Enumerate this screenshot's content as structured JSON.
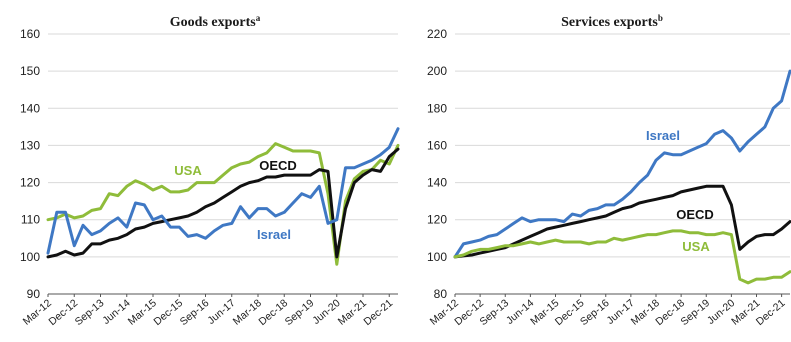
{
  "chart_data": [
    {
      "type": "line",
      "title": "Goods exports",
      "title_superscript": "a",
      "ylim": [
        90,
        160
      ],
      "yticks": [
        "160",
        "150",
        "140",
        "130",
        "120",
        "110",
        "100",
        "90"
      ],
      "xticks": [
        "Mar-12",
        "Dec-12",
        "Sep-13",
        "Jun-14",
        "Mar-15",
        "Dec-15",
        "Sep-16",
        "Jun-17",
        "Mar-18",
        "Dec-18",
        "Sep-19",
        "Jun-20",
        "Mar-21",
        "Dec-21"
      ],
      "grid": "horizontal",
      "x_dates": [
        "2012-03",
        "2012-06",
        "2012-09",
        "2012-12",
        "2013-03",
        "2013-06",
        "2013-09",
        "2013-12",
        "2014-03",
        "2014-06",
        "2014-09",
        "2014-12",
        "2015-03",
        "2015-06",
        "2015-09",
        "2015-12",
        "2016-03",
        "2016-06",
        "2016-09",
        "2016-12",
        "2017-03",
        "2017-06",
        "2017-09",
        "2017-12",
        "2018-03",
        "2018-06",
        "2018-09",
        "2018-12",
        "2019-03",
        "2019-06",
        "2019-09",
        "2019-12",
        "2020-03",
        "2020-06",
        "2020-09",
        "2020-12",
        "2021-03",
        "2021-06",
        "2021-09",
        "2021-12",
        "2022-03"
      ],
      "series": [
        {
          "name": "USA",
          "color": "#8fbc3a",
          "label_position": "left-middle",
          "values": [
            110,
            110.5,
            111.5,
            110.5,
            111,
            112.5,
            113,
            117,
            116.5,
            119,
            120.5,
            119.5,
            118,
            119,
            117.5,
            117.5,
            118,
            120,
            120,
            120,
            122,
            124,
            125,
            125.5,
            127,
            128,
            130.5,
            129.5,
            128.5,
            128.5,
            128.5,
            128,
            117,
            98,
            115,
            121,
            123,
            123.5,
            126,
            125,
            130
          ]
        },
        {
          "name": "OECD",
          "color": "#111111",
          "label_position": "center-upper",
          "values": [
            100,
            100.5,
            101.5,
            100.5,
            101,
            103.5,
            103.5,
            104.5,
            105,
            106,
            107.5,
            108,
            109,
            109.5,
            110,
            110.5,
            111,
            112,
            113.5,
            114.5,
            116,
            117.5,
            119,
            120,
            120.5,
            121.5,
            121.5,
            122,
            122,
            122,
            122,
            123.5,
            123,
            100,
            113,
            120,
            122,
            123.5,
            123,
            127,
            129
          ]
        },
        {
          "name": "Israel",
          "color": "#3f78c4",
          "label_position": "center-lower",
          "values": [
            101,
            112,
            112,
            103,
            108.5,
            106,
            107,
            109,
            110.5,
            108,
            114.5,
            114,
            110,
            111,
            108,
            108,
            105.5,
            106,
            105,
            107,
            108.5,
            109,
            113.5,
            110.5,
            113,
            113,
            111,
            112,
            114.5,
            117,
            116,
            119,
            109,
            110,
            124,
            124,
            125,
            126,
            127.5,
            129.5,
            134.5
          ]
        }
      ]
    },
    {
      "type": "line",
      "title": "Services exports",
      "title_superscript": "b",
      "ylim": [
        80,
        220
      ],
      "yticks": [
        "220",
        "200",
        "180",
        "160",
        "140",
        "120",
        "100",
        "80"
      ],
      "xticks": [
        "Mar-12",
        "Dec-12",
        "Sep-13",
        "Jun-14",
        "Mar-15",
        "Dec-15",
        "Sep-16",
        "Jun-17",
        "Mar-18",
        "Dec-18",
        "Sep-19",
        "Jun-20",
        "Mar-21",
        "Dec-21"
      ],
      "grid": "horizontal",
      "x_dates": [
        "2012-03",
        "2012-06",
        "2012-09",
        "2012-12",
        "2013-03",
        "2013-06",
        "2013-09",
        "2013-12",
        "2014-03",
        "2014-06",
        "2014-09",
        "2014-12",
        "2015-03",
        "2015-06",
        "2015-09",
        "2015-12",
        "2016-03",
        "2016-06",
        "2016-09",
        "2016-12",
        "2017-03",
        "2017-06",
        "2017-09",
        "2017-12",
        "2018-03",
        "2018-06",
        "2018-09",
        "2018-12",
        "2019-03",
        "2019-06",
        "2019-09",
        "2019-12",
        "2020-03",
        "2020-06",
        "2020-09",
        "2020-12",
        "2021-03",
        "2021-06",
        "2021-09",
        "2021-12",
        "2022-03"
      ],
      "series": [
        {
          "name": "Israel",
          "color": "#3f78c4",
          "label_position": "upper-middle",
          "values": [
            100,
            107,
            108,
            109,
            111,
            112,
            115,
            118,
            121,
            119,
            120,
            120,
            120,
            119,
            123,
            122,
            125,
            126,
            128,
            128,
            131,
            135,
            140,
            144,
            152,
            156,
            155,
            155,
            157,
            159,
            161,
            166,
            168,
            164,
            157,
            162,
            166,
            170,
            180,
            184,
            200
          ]
        },
        {
          "name": "OECD",
          "color": "#111111",
          "label_position": "center-right",
          "values": [
            100,
            100.5,
            101,
            102,
            103,
            104,
            105,
            107,
            109,
            111,
            113,
            115,
            116,
            117,
            118,
            119,
            120,
            121,
            122,
            124,
            126,
            127,
            129,
            130,
            131,
            132,
            133,
            135,
            136,
            137,
            138,
            138,
            138,
            128,
            104,
            108,
            111,
            112,
            112,
            115,
            119
          ]
        },
        {
          "name": "USA",
          "color": "#8fbc3a",
          "label_position": "lower-right",
          "values": [
            100,
            101,
            103,
            104,
            104,
            105,
            106,
            106,
            107,
            108,
            107,
            108,
            109,
            108,
            108,
            108,
            107,
            108,
            108,
            110,
            109,
            110,
            111,
            112,
            112,
            113,
            114,
            114,
            113,
            113,
            112,
            112,
            113,
            112,
            88,
            86,
            88,
            88,
            89,
            89,
            92
          ]
        }
      ]
    }
  ]
}
